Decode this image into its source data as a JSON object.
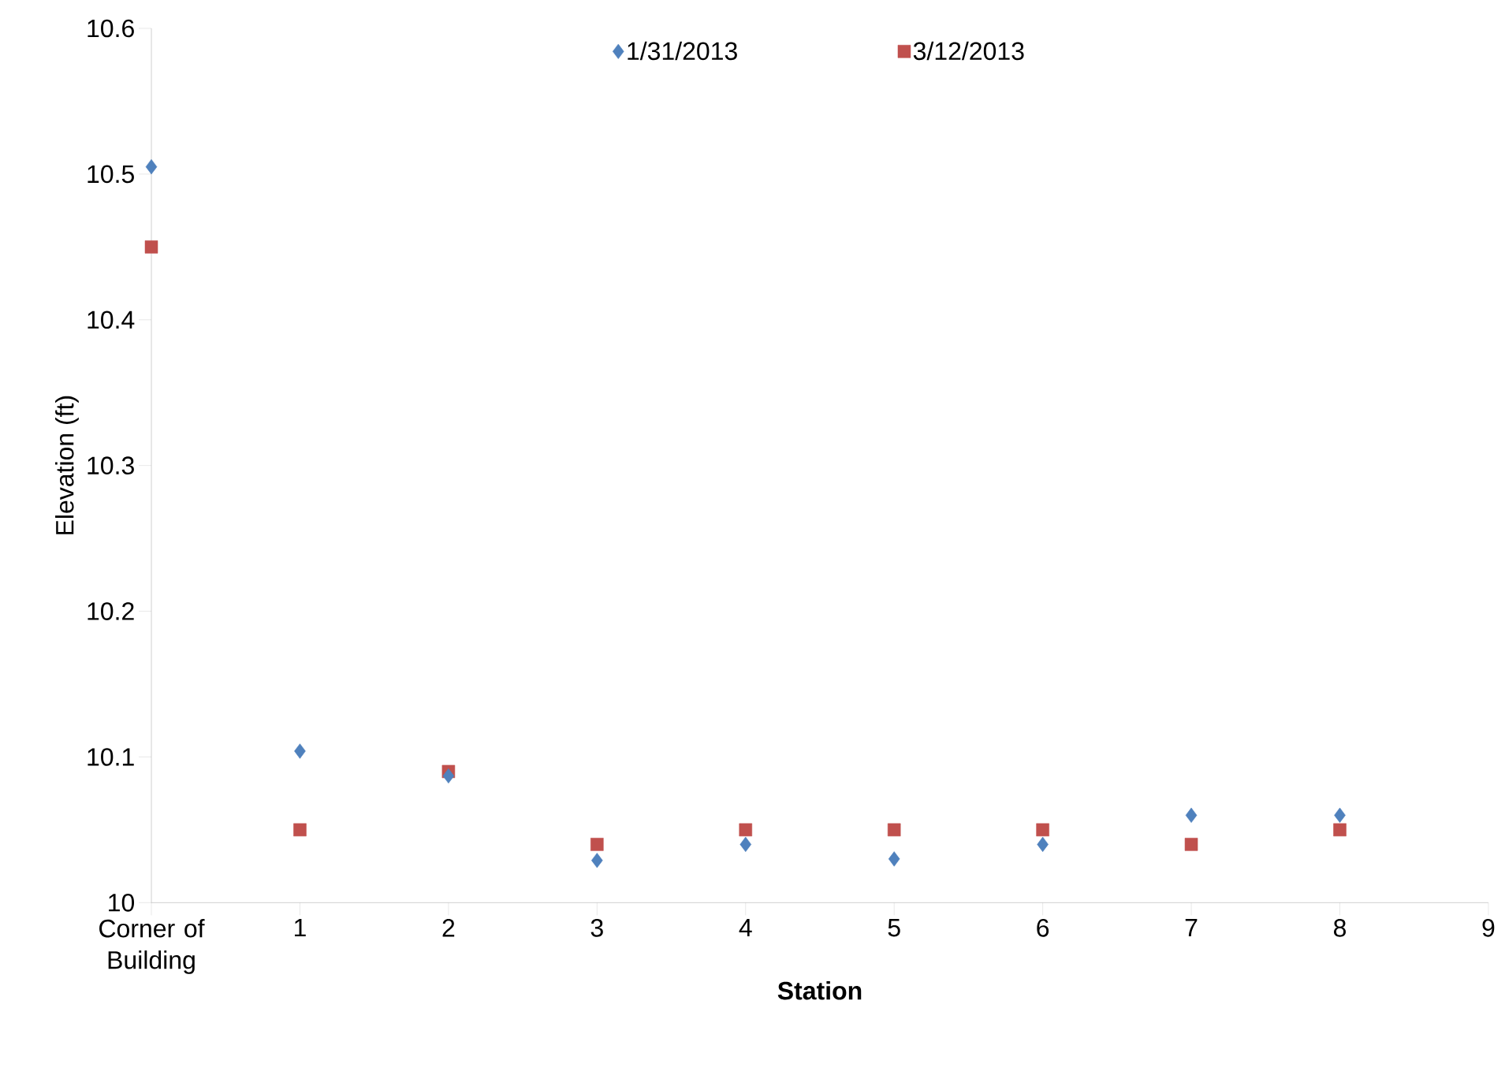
{
  "chart_data": {
    "type": "scatter",
    "xlabel": "Station",
    "ylabel": "Elevation (ft)",
    "x": [
      0,
      1,
      2,
      3,
      4,
      5,
      6,
      7,
      8
    ],
    "series": [
      {
        "name": "1/31/2013",
        "color": "#4f81bd",
        "marker": "diamond",
        "values": [
          10.505,
          10.104,
          10.087,
          10.029,
          10.04,
          10.03,
          10.04,
          10.06,
          10.06
        ]
      },
      {
        "name": "3/12/2013",
        "color": "#c0504d",
        "marker": "square",
        "values": [
          10.45,
          10.05,
          10.09,
          10.04,
          10.05,
          10.05,
          10.05,
          10.04,
          10.05
        ]
      }
    ],
    "xlim": [
      0,
      9
    ],
    "xticks": [
      {
        "value": 0,
        "label": "Corner of Building"
      },
      1,
      2,
      3,
      4,
      5,
      6,
      7,
      8,
      9
    ],
    "ylim": [
      10,
      10.6
    ],
    "yticks": [
      10,
      10.1,
      10.2,
      10.3,
      10.4,
      10.5,
      10.6
    ],
    "grid": false,
    "legend": "top"
  }
}
